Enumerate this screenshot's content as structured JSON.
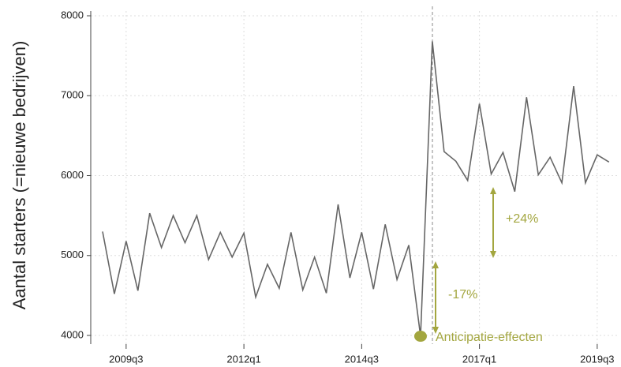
{
  "chart_data": {
    "type": "line",
    "ylabel": "Aantal starters (=nieuwe bedrijven)",
    "categories": [
      null,
      null,
      "2009q3",
      null,
      null,
      null,
      null,
      null,
      null,
      null,
      null,
      null,
      "2012q1",
      null,
      null,
      null,
      null,
      null,
      null,
      null,
      null,
      null,
      "2014q3",
      null,
      null,
      null,
      null,
      null,
      null,
      null,
      null,
      null,
      "2017q1",
      null,
      null,
      null,
      null,
      null,
      null,
      null,
      null,
      null,
      "2019q3",
      null
    ],
    "series": [
      {
        "color": "#666666",
        "values": [
          5300,
          4520,
          5180,
          4560,
          5530,
          5100,
          5500,
          5160,
          5500,
          4950,
          5290,
          4980,
          5280,
          4480,
          4890,
          4590,
          5290,
          4570,
          4980,
          4530,
          5640,
          4720,
          5290,
          4580,
          5390,
          4700,
          5130,
          3990,
          7680,
          6300,
          6180,
          5940,
          6900,
          6020,
          6290,
          5800,
          6980,
          6010,
          6230,
          5910,
          7120,
          5910,
          6260,
          6170
        ]
      }
    ],
    "ylim": [
      4000,
      8000
    ],
    "yticks": [
      4000,
      5000,
      6000,
      7000,
      8000
    ],
    "grid": true,
    "annotations": [
      "Anticipatie-effecten",
      "-17%",
      "+24%"
    ]
  }
}
